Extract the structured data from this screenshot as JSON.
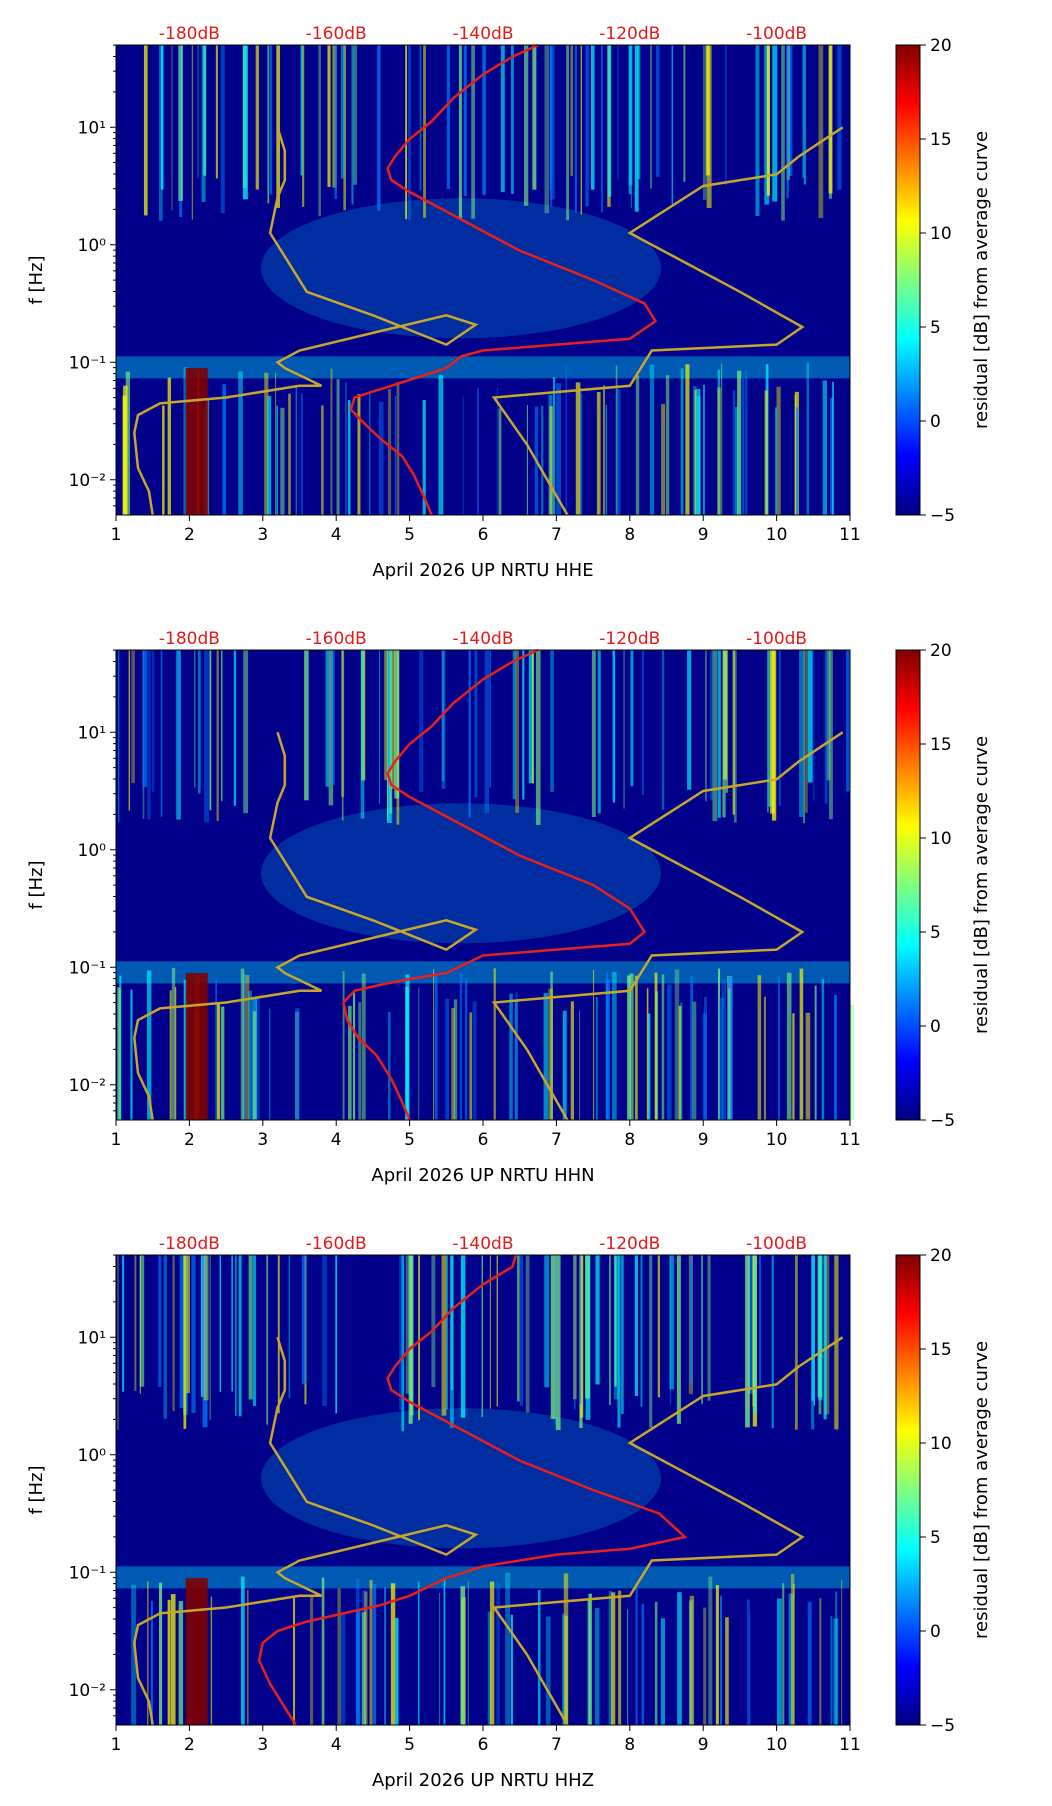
{
  "colors": {
    "jet": [
      "#00007f",
      "#0000ff",
      "#007fff",
      "#00ffff",
      "#7fff7f",
      "#ffff00",
      "#ff7f00",
      "#ff0000",
      "#7f0000"
    ],
    "background": "#00008b",
    "nlnm_nhnm_curve": "#c8a62e",
    "mean_psd_curve": "#e8201c",
    "db_label": "#e31a1c",
    "axis": "#000000"
  },
  "figure": {
    "panels": [
      {
        "xlabel": "April 2026 UP NRTU  HHE",
        "ylabel": "f [Hz]",
        "colorbar_label": "residual [dB] from average curve"
      },
      {
        "xlabel": "April 2026 UP NRTU  HHN",
        "ylabel": "f [Hz]",
        "colorbar_label": "residual [dB] from average curve"
      },
      {
        "xlabel": "April 2026 UP NRTU  HHZ",
        "ylabel": "f [Hz]",
        "colorbar_label": "residual [dB] from average curve"
      }
    ]
  },
  "chart_data": [
    {
      "type": "heatmap",
      "title": "",
      "xlabel": "April 2026 UP NRTU  HHE",
      "ylabel": "f [Hz]",
      "xlim": [
        1,
        11
      ],
      "ylim_log10": [
        -2.3,
        1.7
      ],
      "x_ticks": [
        "1",
        "2",
        "3",
        "4",
        "5",
        "6",
        "7",
        "8",
        "9",
        "10",
        "11"
      ],
      "y_ticks": [
        "10⁻²",
        "10⁻¹",
        "10⁰",
        "10¹"
      ],
      "top_db_labels": [
        "-180dB",
        "-160dB",
        "-140dB",
        "-120dB",
        "-100dB"
      ],
      "colorbar": {
        "label": "residual [dB] from average curve",
        "range": [
          -5,
          20
        ],
        "ticks": [
          "−5",
          "0",
          "5",
          "10",
          "15",
          "20"
        ]
      },
      "series": [
        {
          "name": "noise model envelope (low)",
          "x": [
            1.5,
            1.45,
            1.3,
            1.25,
            1.3,
            1.6,
            2.5,
            3.5,
            3.8,
            3.3,
            3.2,
            3.5,
            4.5,
            5.5,
            5.9,
            5.5,
            4.5,
            3.6,
            3.1,
            3.2,
            3.3,
            3.3,
            3.2
          ],
          "y": [
            -2.3,
            -2.1,
            -1.9,
            -1.6,
            -1.45,
            -1.35,
            -1.3,
            -1.2,
            -1.2,
            -1.05,
            -1.0,
            -0.9,
            -0.75,
            -0.6,
            -0.68,
            -0.85,
            -0.6,
            -0.4,
            0.1,
            0.4,
            0.55,
            0.8,
            1.0
          ]
        },
        {
          "name": "noise model envelope (high)",
          "x": [
            7.15,
            6.6,
            6.15,
            8.0,
            8.3,
            10.0,
            10.35,
            9.5,
            8.0,
            9.0,
            10.0,
            10.3,
            10.9
          ],
          "y": [
            -2.3,
            -1.7,
            -1.3,
            -1.2,
            -0.9,
            -0.85,
            -0.7,
            -0.4,
            0.1,
            0.5,
            0.6,
            0.75,
            1.0
          ]
        },
        {
          "name": "mean PSD (dB)",
          "x": [
            5.3,
            5.2,
            5.05,
            4.9,
            4.6,
            4.35,
            4.2,
            4.25,
            4.5,
            5.0,
            5.5,
            5.7,
            6.0,
            7.0,
            8.0,
            8.35,
            8.2,
            7.5,
            6.5,
            5.6,
            5.0,
            4.75,
            4.7,
            4.8,
            5.0,
            5.3,
            5.6,
            6.0,
            6.4,
            6.75
          ],
          "y": [
            -2.3,
            -2.15,
            -1.95,
            -1.8,
            -1.65,
            -1.5,
            -1.4,
            -1.3,
            -1.25,
            -1.15,
            -1.05,
            -0.95,
            -0.9,
            -0.85,
            -0.8,
            -0.65,
            -0.5,
            -0.3,
            -0.05,
            0.25,
            0.45,
            0.55,
            0.65,
            0.75,
            0.9,
            1.05,
            1.25,
            1.45,
            1.6,
            1.7
          ]
        }
      ]
    },
    {
      "type": "heatmap",
      "title": "",
      "xlabel": "April 2026 UP NRTU  HHN",
      "ylabel": "f [Hz]",
      "xlim": [
        1,
        11
      ],
      "ylim_log10": [
        -2.3,
        1.7
      ],
      "x_ticks": [
        "1",
        "2",
        "3",
        "4",
        "5",
        "6",
        "7",
        "8",
        "9",
        "10",
        "11"
      ],
      "y_ticks": [
        "10⁻²",
        "10⁻¹",
        "10⁰",
        "10¹"
      ],
      "top_db_labels": [
        "-180dB",
        "-160dB",
        "-140dB",
        "-120dB",
        "-100dB"
      ],
      "colorbar": {
        "label": "residual [dB] from average curve",
        "range": [
          -5,
          20
        ],
        "ticks": [
          "−5",
          "0",
          "5",
          "10",
          "15",
          "20"
        ]
      },
      "series": [
        {
          "name": "noise model envelope (low)",
          "x": [
            1.5,
            1.45,
            1.3,
            1.25,
            1.3,
            1.6,
            2.5,
            3.5,
            3.8,
            3.3,
            3.2,
            3.5,
            4.5,
            5.5,
            5.9,
            5.5,
            4.5,
            3.6,
            3.1,
            3.2,
            3.3,
            3.3,
            3.2
          ],
          "y": [
            -2.3,
            -2.1,
            -1.9,
            -1.6,
            -1.45,
            -1.35,
            -1.3,
            -1.2,
            -1.2,
            -1.05,
            -1.0,
            -0.9,
            -0.75,
            -0.6,
            -0.68,
            -0.85,
            -0.6,
            -0.4,
            0.1,
            0.4,
            0.55,
            0.8,
            1.0
          ]
        },
        {
          "name": "noise model envelope (high)",
          "x": [
            7.15,
            6.6,
            6.15,
            8.0,
            8.3,
            10.0,
            10.35,
            9.5,
            8.0,
            9.0,
            10.0,
            10.3,
            10.9
          ],
          "y": [
            -2.3,
            -1.7,
            -1.3,
            -1.2,
            -0.9,
            -0.85,
            -0.7,
            -0.4,
            0.1,
            0.5,
            0.6,
            0.75,
            1.0
          ]
        },
        {
          "name": "mean PSD (dB)",
          "x": [
            5.0,
            4.9,
            4.75,
            4.55,
            4.3,
            4.15,
            4.1,
            4.25,
            4.6,
            5.0,
            5.5,
            6.0,
            7.0,
            8.0,
            8.2,
            8.0,
            7.5,
            6.5,
            5.6,
            5.0,
            4.75,
            4.7,
            4.8,
            5.0,
            5.3,
            5.6,
            6.0,
            6.4,
            6.75
          ],
          "y": [
            -2.3,
            -2.15,
            -1.95,
            -1.75,
            -1.6,
            -1.45,
            -1.3,
            -1.2,
            -1.15,
            -1.1,
            -1.05,
            -0.9,
            -0.85,
            -0.8,
            -0.7,
            -0.5,
            -0.3,
            -0.05,
            0.25,
            0.45,
            0.55,
            0.65,
            0.75,
            0.9,
            1.05,
            1.25,
            1.45,
            1.6,
            1.7
          ]
        }
      ]
    },
    {
      "type": "heatmap",
      "title": "",
      "xlabel": "April 2026 UP NRTU  HHZ",
      "ylabel": "f [Hz]",
      "xlim": [
        1,
        11
      ],
      "ylim_log10": [
        -2.3,
        1.7
      ],
      "x_ticks": [
        "1",
        "2",
        "3",
        "4",
        "5",
        "6",
        "7",
        "8",
        "9",
        "10",
        "11"
      ],
      "y_ticks": [
        "10⁻²",
        "10⁻¹",
        "10⁰",
        "10¹"
      ],
      "top_db_labels": [
        "-180dB",
        "-160dB",
        "-140dB",
        "-120dB",
        "-100dB"
      ],
      "colorbar": {
        "label": "residual [dB] from average curve",
        "range": [
          -5,
          20
        ],
        "ticks": [
          "−5",
          "0",
          "5",
          "10",
          "15",
          "20"
        ]
      },
      "series": [
        {
          "name": "noise model envelope (low)",
          "x": [
            1.5,
            1.45,
            1.3,
            1.25,
            1.3,
            1.6,
            2.5,
            3.5,
            3.8,
            3.3,
            3.2,
            3.5,
            4.5,
            5.5,
            5.9,
            5.5,
            4.5,
            3.6,
            3.1,
            3.2,
            3.3,
            3.3,
            3.2
          ],
          "y": [
            -2.3,
            -2.1,
            -1.9,
            -1.6,
            -1.45,
            -1.35,
            -1.3,
            -1.2,
            -1.2,
            -1.05,
            -1.0,
            -0.9,
            -0.75,
            -0.6,
            -0.68,
            -0.85,
            -0.6,
            -0.4,
            0.1,
            0.4,
            0.55,
            0.8,
            1.0
          ]
        },
        {
          "name": "noise model envelope (high)",
          "x": [
            7.15,
            6.6,
            6.15,
            8.0,
            8.3,
            10.0,
            10.35,
            9.5,
            8.0,
            9.0,
            10.0,
            10.3,
            10.9
          ],
          "y": [
            -2.3,
            -1.7,
            -1.3,
            -1.2,
            -0.9,
            -0.85,
            -0.7,
            -0.4,
            0.1,
            0.5,
            0.6,
            0.75,
            1.0
          ]
        },
        {
          "name": "mean PSD (dB)",
          "x": [
            3.45,
            3.3,
            3.1,
            2.95,
            3.0,
            3.2,
            3.6,
            4.1,
            4.6,
            5.0,
            5.5,
            6.0,
            7.0,
            8.0,
            8.75,
            8.4,
            7.5,
            6.5,
            5.6,
            5.0,
            4.75,
            4.7,
            4.8,
            5.0,
            5.3,
            5.6,
            6.0,
            6.4,
            6.45
          ],
          "y": [
            -2.3,
            -2.15,
            -1.95,
            -1.75,
            -1.6,
            -1.5,
            -1.42,
            -1.35,
            -1.28,
            -1.2,
            -1.05,
            -0.95,
            -0.85,
            -0.8,
            -0.7,
            -0.5,
            -0.3,
            -0.05,
            0.25,
            0.45,
            0.55,
            0.65,
            0.75,
            0.9,
            1.05,
            1.25,
            1.45,
            1.6,
            1.7
          ]
        }
      ]
    }
  ]
}
